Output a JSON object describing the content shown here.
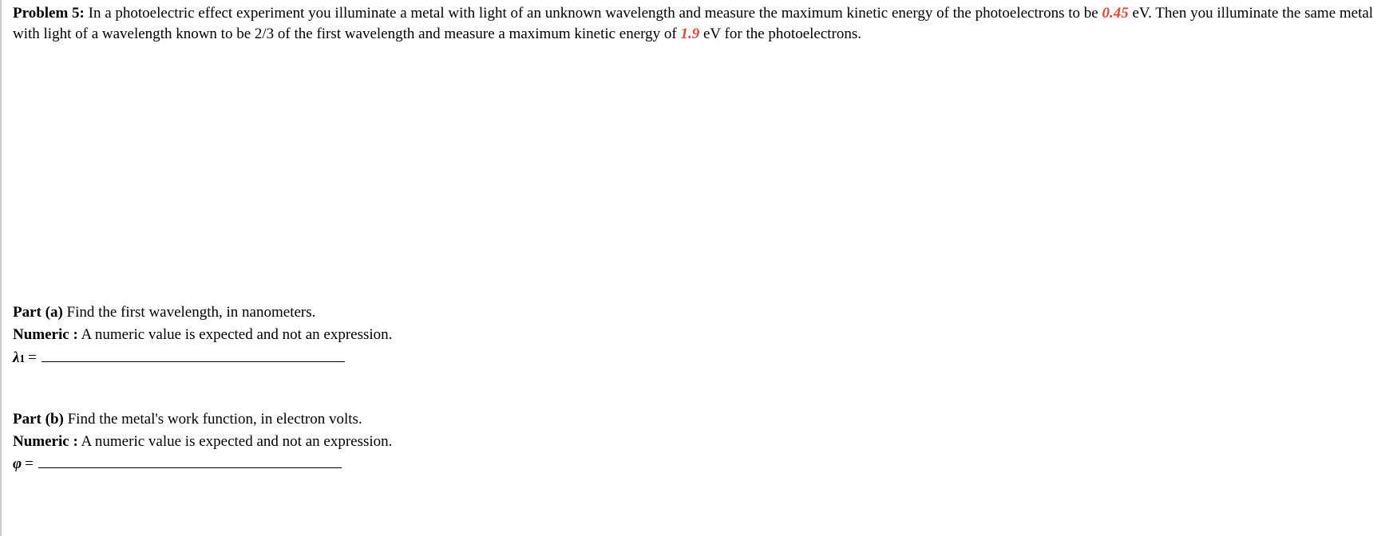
{
  "problem": {
    "label": "Problem 5:",
    "text_part1": "In a photoelectric effect experiment you illuminate a metal with light of an unknown wavelength and measure the maximum kinetic energy of the photoelectrons to be ",
    "value1": "0.45",
    "text_part2": " eV. Then you illuminate the same metal with light of a wavelength known to be 2/3 of the first wavelength and measure a maximum kinetic energy of ",
    "value2": "1.9",
    "text_part3": " eV for the photoelectrons."
  },
  "partA": {
    "label": "Part (a)",
    "prompt": " Find the first wavelength, in nanometers.",
    "numeric_label": "Numeric   :",
    "numeric_text": " A numeric value is expected and not an expression.",
    "variable": "λ",
    "subscript": "1",
    "equals": "="
  },
  "partB": {
    "label": "Part (b)",
    "prompt": " Find the metal's work function, in electron volts.",
    "numeric_label": "Numeric   :",
    "numeric_text": " A numeric value is expected and not an expression.",
    "variable": "φ",
    "equals": "="
  }
}
